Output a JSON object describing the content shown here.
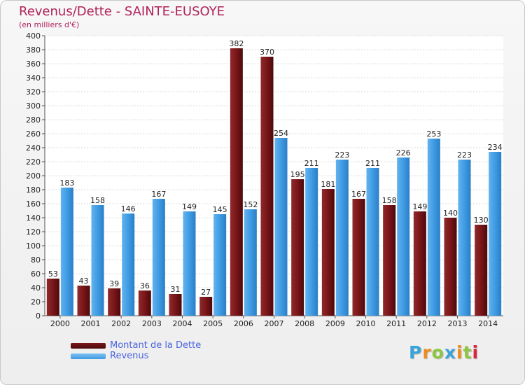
{
  "header": {
    "title": "Revenus/Dette - SAINTE-EUSOYE",
    "subtitle": "(en milliers d'€)"
  },
  "colors": {
    "dette": "#7a1518",
    "revenus": "#3f9be3",
    "title": "#b0225a",
    "legend_text": "#4a63e0"
  },
  "legend": {
    "dette_label": "Montant de la Dette",
    "revenus_label": "Revenus"
  },
  "logo": {
    "letters": [
      "P",
      "r",
      "o",
      "x",
      "i",
      "t",
      "i"
    ],
    "colors": [
      "#3aa3d8",
      "#f08a1c",
      "#8dc63f",
      "#3aa3d8",
      "#f08a1c",
      "#8dc63f",
      "#d7263d"
    ]
  },
  "chart_data": {
    "type": "bar",
    "title": "Revenus/Dette - SAINTE-EUSOYE",
    "ylabel": "(en milliers d'€)",
    "categories": [
      "2000",
      "2001",
      "2002",
      "2003",
      "2004",
      "2005",
      "2006",
      "2007",
      "2008",
      "2009",
      "2010",
      "2011",
      "2012",
      "2013",
      "2014"
    ],
    "series": [
      {
        "name": "Montant de la Dette",
        "values": [
          53,
          43,
          39,
          36,
          31,
          27,
          382,
          370,
          195,
          181,
          167,
          158,
          149,
          140,
          130
        ]
      },
      {
        "name": "Revenus",
        "values": [
          183,
          158,
          146,
          167,
          149,
          145,
          152,
          254,
          211,
          223,
          211,
          226,
          253,
          223,
          234
        ]
      }
    ],
    "ylim": [
      0,
      400
    ],
    "ytick_step": 20,
    "grid": true,
    "legend_position": "bottom-left"
  }
}
